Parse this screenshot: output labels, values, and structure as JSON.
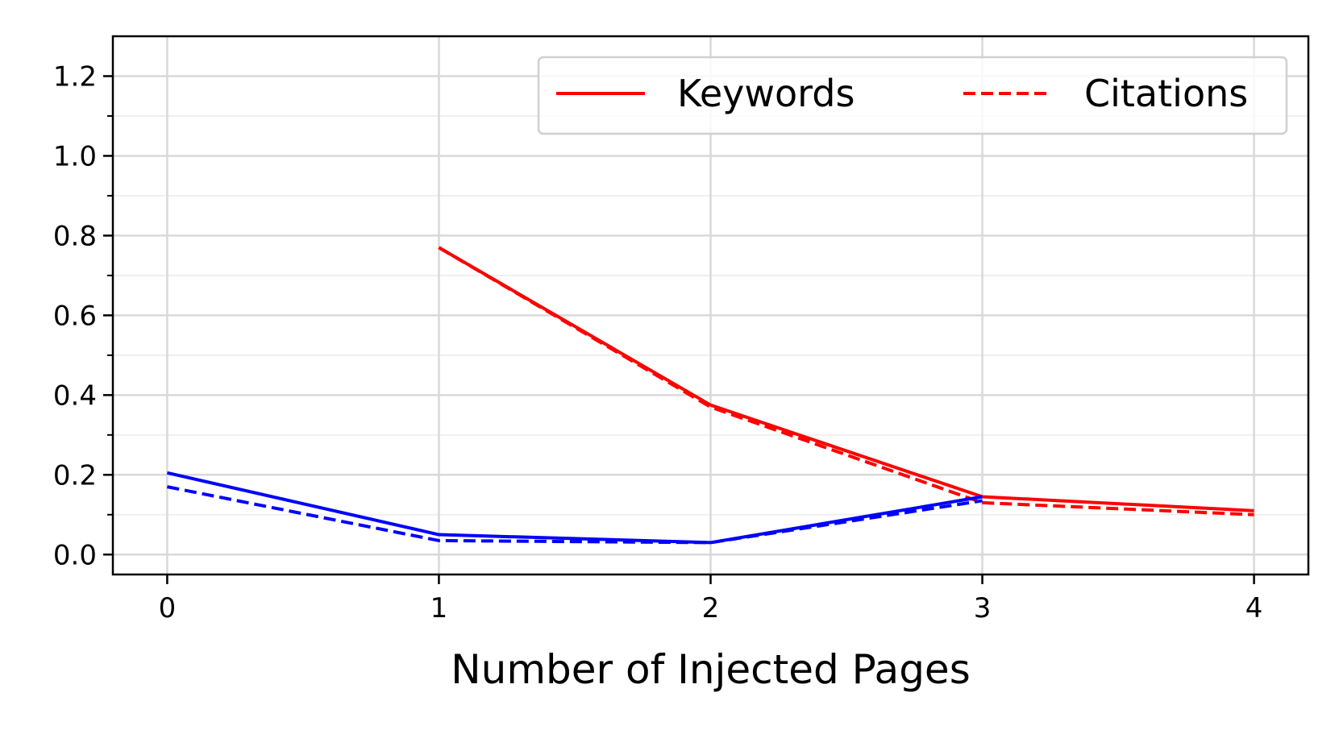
{
  "chart_data": {
    "type": "line",
    "title": "",
    "xlabel": "Number of Injected Pages",
    "ylabel": "",
    "x": [
      0,
      1,
      2,
      3,
      4
    ],
    "xlim": [
      -0.2,
      4.2
    ],
    "ylim": [
      -0.05,
      1.3
    ],
    "xticks": [
      0,
      1,
      2,
      3,
      4
    ],
    "yticks": [
      0.0,
      0.2,
      0.4,
      0.6,
      0.8,
      1.0,
      1.2
    ],
    "yminor": [
      0.1,
      0.3,
      0.5,
      0.7,
      0.9,
      1.1
    ],
    "grid": true,
    "legend_position": "top-right",
    "series": [
      {
        "name": "Keywords",
        "color": "#ff0000",
        "dash": "solid",
        "x": [
          1,
          2,
          3,
          4
        ],
        "values": [
          0.77,
          0.375,
          0.145,
          0.11
        ]
      },
      {
        "name": "Citations",
        "color": "#ff0000",
        "dash": "dashed",
        "x": [
          1,
          2,
          3,
          4
        ],
        "values": [
          0.77,
          0.37,
          0.13,
          0.1
        ]
      },
      {
        "color": "#0000ff",
        "dash": "solid",
        "x": [
          0,
          1,
          2,
          3
        ],
        "values": [
          0.205,
          0.05,
          0.03,
          0.145
        ]
      },
      {
        "color": "#0000ff",
        "dash": "dashed",
        "x": [
          0,
          1,
          2,
          3
        ],
        "values": [
          0.17,
          0.035,
          0.03,
          0.135
        ]
      }
    ],
    "legend_entries": [
      {
        "label": "Keywords",
        "color": "#ff0000",
        "dash": "solid"
      },
      {
        "label": "Citations",
        "color": "#ff0000",
        "dash": "dashed"
      }
    ]
  }
}
